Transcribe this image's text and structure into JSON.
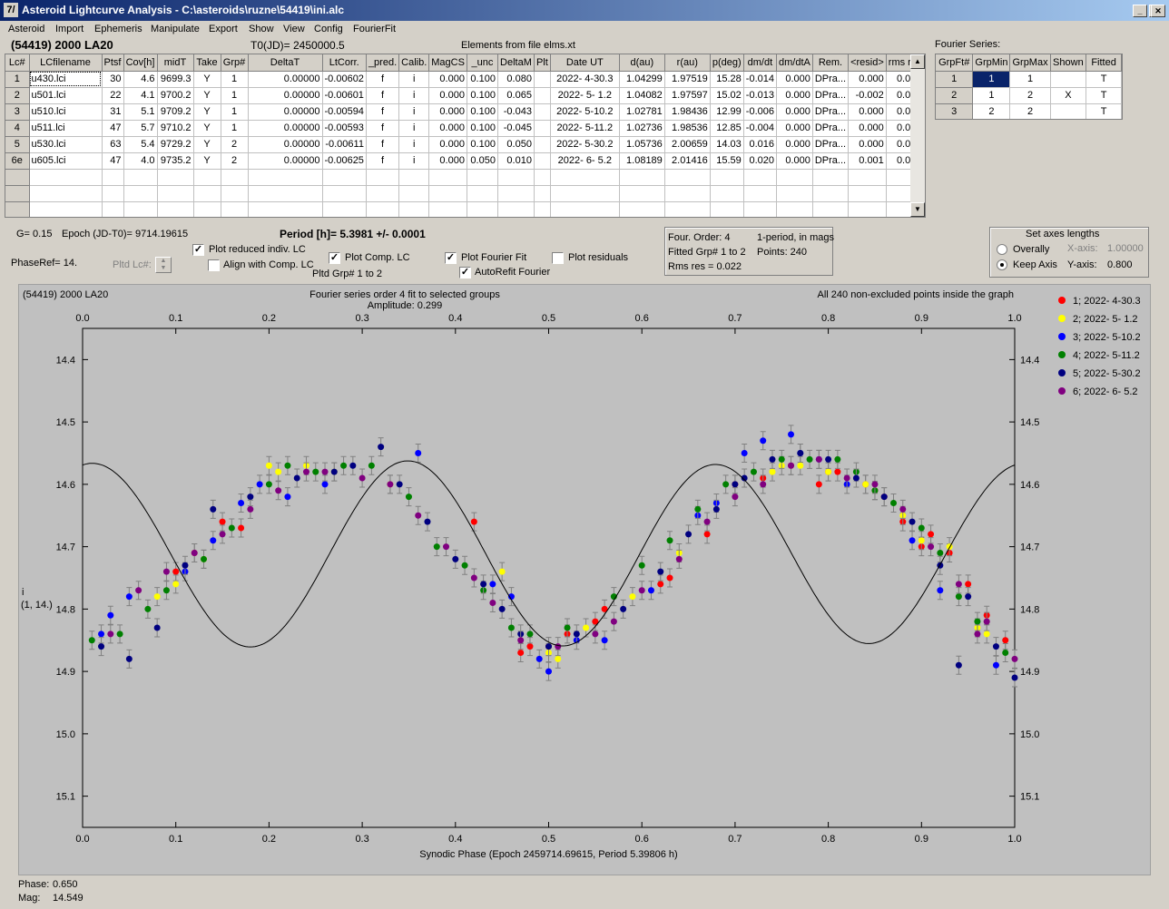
{
  "window": {
    "title": "Asteroid Lightcurve Analysis - C:\\asteroids\\ruzne\\54419\\ini.alc",
    "icon": "app-icon"
  },
  "menu": [
    "Asteroid",
    "Import",
    "Ephemeris",
    "Manipulate",
    "Export",
    "Show",
    "View",
    "Config",
    "FourierFit"
  ],
  "header": {
    "object": "(54419) 2000 LA20",
    "t0": "T0(JD)= 2450000.5",
    "elements": "Elements from file elms.xt"
  },
  "lc_table": {
    "columns": [
      "Lc#",
      "LCfilename",
      "Ptsf",
      "Cov[h]",
      "midT",
      "Take",
      "Grp#",
      "DeltaT",
      "LtCorr.",
      "_pred.",
      "Calib.",
      "MagCS",
      "_unc",
      "DeltaM",
      "Plt",
      "Date UT",
      "d(au)",
      "r(au)",
      "p(deg)",
      "dm/dt",
      "dm/dtA",
      "Rem.",
      "<resid>",
      "rms res"
    ],
    "rows": [
      [
        "1",
        "u430.lci",
        "30",
        "4.6",
        "9699.3",
        "Y",
        "1",
        "0.00000",
        "-0.00602",
        "f",
        "i",
        "0.000",
        "0.100",
        "0.080",
        "",
        "2022- 4-30.3",
        "1.04299",
        "1.97519",
        "15.28",
        "-0.014",
        "0.000",
        "DPra...",
        "0.000",
        "0.020"
      ],
      [
        "2",
        "u501.lci",
        "22",
        "4.1",
        "9700.2",
        "Y",
        "1",
        "0.00000",
        "-0.00601",
        "f",
        "i",
        "0.000",
        "0.100",
        "0.065",
        "",
        "2022- 5- 1.2",
        "1.04082",
        "1.97597",
        "15.02",
        "-0.013",
        "0.000",
        "DPra...",
        "-0.002",
        "0.018"
      ],
      [
        "3",
        "u510.lci",
        "31",
        "5.1",
        "9709.2",
        "Y",
        "1",
        "0.00000",
        "-0.00594",
        "f",
        "i",
        "0.000",
        "0.100",
        "-0.043",
        "",
        "2022- 5-10.2",
        "1.02781",
        "1.98436",
        "12.99",
        "-0.006",
        "0.000",
        "DPra...",
        "0.000",
        "0.027"
      ],
      [
        "4",
        "u511.lci",
        "47",
        "5.7",
        "9710.2",
        "Y",
        "1",
        "0.00000",
        "-0.00593",
        "f",
        "i",
        "0.000",
        "0.100",
        "-0.045",
        "",
        "2022- 5-11.2",
        "1.02736",
        "1.98536",
        "12.85",
        "-0.004",
        "0.000",
        "DPra...",
        "0.000",
        "0.016"
      ],
      [
        "5",
        "u530.lci",
        "63",
        "5.4",
        "9729.2",
        "Y",
        "2",
        "0.00000",
        "-0.00611",
        "f",
        "i",
        "0.000",
        "0.100",
        "0.050",
        "",
        "2022- 5-30.2",
        "1.05736",
        "2.00659",
        "14.03",
        "0.016",
        "0.000",
        "DPra...",
        "0.000",
        "0.025"
      ],
      [
        "6e",
        "u605.lci",
        "47",
        "4.0",
        "9735.2",
        "Y",
        "2",
        "0.00000",
        "-0.00625",
        "f",
        "i",
        "0.000",
        "0.050",
        "0.010",
        "",
        "2022- 6- 5.2",
        "1.08189",
        "2.01416",
        "15.59",
        "0.020",
        "0.000",
        "DPra...",
        "0.001",
        "0.018"
      ]
    ]
  },
  "fourier_series": {
    "label": "Fourier Series:",
    "columns": [
      "GrpFt#",
      "GrpMin",
      "GrpMax",
      "Shown",
      "Fitted"
    ],
    "rows": [
      [
        "1",
        "1",
        "1",
        "",
        "T"
      ],
      [
        "2",
        "1",
        "2",
        "X",
        "T"
      ],
      [
        "3",
        "2",
        "2",
        "",
        "T"
      ]
    ]
  },
  "controls": {
    "g": "G= 0.15",
    "epoch": "Epoch (JD-T0)= 9714.19615",
    "period": "Period [h]= 5.3981 +/- 0.0001",
    "phaseref": "PhaseRef= 14.",
    "pltd_lc": "Pltd Lc#:",
    "plot_reduced": "Plot reduced indiv. LC",
    "align_comp": "Align with Comp. LC",
    "plot_comp": "Plot Comp. LC",
    "pltd_grp": "Pltd Grp#  1   to   2",
    "plot_fourier": "Plot Fourier Fit",
    "autorefit": "AutoRefit Fourier",
    "plot_residuals": "Plot residuals",
    "plot_reduced_checked": true,
    "align_comp_checked": false,
    "plot_comp_checked": true,
    "plot_fourier_checked": true,
    "autorefit_checked": true,
    "plot_residuals_checked": false
  },
  "fourier_info": {
    "order": "Four. Order:  4",
    "period_mode": "1-period, in mags",
    "fitted": "Fitted Grp# 1 to 2",
    "points": "Points: 240",
    "rms": "Rms res     = 0.022"
  },
  "axes_settings": {
    "title": "Set axes lengths",
    "overally": "Overally",
    "keep": "Keep Axis",
    "xaxis_label": "X-axis:",
    "xaxis_value": "1.00000",
    "yaxis_label": "Y-axis:",
    "yaxis_value": "0.800",
    "selected": "keep"
  },
  "chart_data": {
    "type": "scatter",
    "title_left": "(54419) 2000 LA20",
    "title_center": "Fourier series order 4 fit to selected groups",
    "amplitude": "Amplitude: 0.299",
    "title_right": "All 240 non-excluded points inside the graph",
    "xlabel": "Synodic Phase (Epoch 2459714.69615, Period 5.39806 h)",
    "ylabel": [
      "i",
      "(1, 14.)"
    ],
    "xlim": [
      0,
      1
    ],
    "ylim": [
      15.15,
      14.35
    ],
    "xticks": [
      "0.0",
      "0.1",
      "0.2",
      "0.3",
      "0.4",
      "0.5",
      "0.6",
      "0.7",
      "0.8",
      "0.9",
      "1.0"
    ],
    "yticks": [
      "14.4",
      "14.5",
      "14.6",
      "14.7",
      "14.8",
      "14.9",
      "15.0",
      "15.1"
    ],
    "fourier": {
      "mean": 14.712,
      "a": [
        0.0,
        -0.003,
        -0.142,
        0.002
      ],
      "b": [
        0.0,
        0.005,
        -0.035,
        0.003
      ]
    },
    "series": [
      {
        "name": "1; 2022- 4-30.3",
        "color": "#ff0000",
        "x": [
          0.12,
          0.15,
          0.17,
          0.42,
          0.47,
          0.5,
          0.52,
          0.56,
          0.63,
          0.67,
          0.73,
          0.76,
          0.79,
          0.81,
          0.84,
          0.86,
          0.88,
          0.91,
          0.93,
          0.95,
          0.97,
          0.99,
          0.1,
          0.55,
          0.8,
          0.9,
          0.85,
          0.7,
          0.62,
          0.48
        ],
        "y": [
          14.71,
          14.66,
          14.67,
          14.66,
          14.87,
          14.86,
          14.84,
          14.8,
          14.75,
          14.68,
          14.59,
          14.57,
          14.6,
          14.58,
          14.6,
          14.62,
          14.66,
          14.68,
          14.71,
          14.76,
          14.81,
          14.85,
          14.74,
          14.82,
          14.58,
          14.7,
          14.61,
          14.6,
          14.76,
          14.86
        ]
      },
      {
        "name": "2; 2022- 5- 1.2",
        "color": "#ffff00",
        "x": [
          0.08,
          0.1,
          0.13,
          0.21,
          0.24,
          0.27,
          0.33,
          0.45,
          0.51,
          0.54,
          0.59,
          0.64,
          0.74,
          0.77,
          0.8,
          0.84,
          0.88,
          0.93,
          0.97,
          0.2,
          0.5,
          0.75,
          0.9,
          0.96
        ],
        "y": [
          14.78,
          14.76,
          14.72,
          14.58,
          14.57,
          14.58,
          14.6,
          14.74,
          14.88,
          14.83,
          14.78,
          14.71,
          14.58,
          14.57,
          14.58,
          14.6,
          14.65,
          14.7,
          14.84,
          14.57,
          14.87,
          14.57,
          14.69,
          14.83
        ]
      },
      {
        "name": "3; 2022- 5-10.2",
        "color": "#0000ff",
        "x": [
          0.03,
          0.05,
          0.11,
          0.14,
          0.17,
          0.22,
          0.26,
          0.36,
          0.46,
          0.49,
          0.5,
          0.56,
          0.61,
          0.66,
          0.71,
          0.73,
          0.76,
          0.79,
          0.82,
          0.89,
          0.92,
          0.98,
          0.02,
          0.19,
          0.44,
          0.53,
          0.68,
          0.77
        ],
        "y": [
          14.81,
          14.78,
          14.74,
          14.69,
          14.63,
          14.62,
          14.6,
          14.55,
          14.78,
          14.88,
          14.9,
          14.85,
          14.77,
          14.65,
          14.55,
          14.53,
          14.52,
          14.56,
          14.6,
          14.69,
          14.77,
          14.89,
          14.84,
          14.6,
          14.76,
          14.85,
          14.63,
          14.55
        ]
      },
      {
        "name": "4; 2022- 5-11.2",
        "color": "#008000",
        "x": [
          0.01,
          0.04,
          0.09,
          0.13,
          0.16,
          0.2,
          0.25,
          0.31,
          0.35,
          0.38,
          0.41,
          0.43,
          0.46,
          0.48,
          0.52,
          0.57,
          0.6,
          0.63,
          0.66,
          0.69,
          0.72,
          0.75,
          0.78,
          0.81,
          0.83,
          0.85,
          0.87,
          0.9,
          0.92,
          0.94,
          0.96,
          0.99,
          0.07,
          0.22,
          0.28
        ],
        "y": [
          14.85,
          14.84,
          14.77,
          14.72,
          14.67,
          14.6,
          14.58,
          14.57,
          14.62,
          14.7,
          14.73,
          14.77,
          14.83,
          14.84,
          14.83,
          14.78,
          14.73,
          14.69,
          14.64,
          14.6,
          14.58,
          14.56,
          14.56,
          14.56,
          14.58,
          14.61,
          14.63,
          14.67,
          14.71,
          14.78,
          14.82,
          14.87,
          14.8,
          14.57,
          14.57
        ]
      },
      {
        "name": "5; 2022- 5-30.2",
        "color": "#000080",
        "x": [
          0.02,
          0.05,
          0.08,
          0.11,
          0.14,
          0.18,
          0.23,
          0.27,
          0.32,
          0.34,
          0.37,
          0.4,
          0.43,
          0.47,
          0.5,
          0.53,
          0.58,
          0.62,
          0.65,
          0.68,
          0.71,
          0.74,
          0.77,
          0.8,
          0.83,
          0.86,
          0.89,
          0.92,
          0.95,
          0.98,
          1.0,
          0.29,
          0.45,
          0.7,
          0.94
        ],
        "y": [
          14.86,
          14.88,
          14.83,
          14.73,
          14.64,
          14.62,
          14.59,
          14.58,
          14.54,
          14.6,
          14.66,
          14.72,
          14.76,
          14.84,
          14.86,
          14.84,
          14.8,
          14.74,
          14.68,
          14.64,
          14.59,
          14.56,
          14.55,
          14.56,
          14.59,
          14.62,
          14.66,
          14.73,
          14.78,
          14.86,
          14.91,
          14.57,
          14.8,
          14.6,
          14.89
        ]
      },
      {
        "name": "6; 2022- 6- 5.2",
        "color": "#800080",
        "x": [
          0.03,
          0.06,
          0.09,
          0.12,
          0.15,
          0.18,
          0.21,
          0.24,
          0.3,
          0.33,
          0.36,
          0.39,
          0.42,
          0.44,
          0.47,
          0.51,
          0.55,
          0.6,
          0.64,
          0.67,
          0.7,
          0.73,
          0.79,
          0.82,
          0.85,
          0.88,
          0.91,
          0.94,
          0.97,
          1.0,
          0.26,
          0.57,
          0.76,
          0.96
        ],
        "y": [
          14.84,
          14.77,
          14.74,
          14.71,
          14.68,
          14.64,
          14.61,
          14.58,
          14.59,
          14.6,
          14.65,
          14.7,
          14.75,
          14.79,
          14.85,
          14.86,
          14.84,
          14.77,
          14.72,
          14.66,
          14.62,
          14.6,
          14.56,
          14.59,
          14.6,
          14.64,
          14.7,
          14.76,
          14.82,
          14.88,
          14.58,
          14.82,
          14.57,
          14.84
        ]
      }
    ]
  },
  "status": {
    "phase_label": "Phase:",
    "phase": "0.650",
    "mag_label": "Mag:",
    "mag": "14.549"
  }
}
